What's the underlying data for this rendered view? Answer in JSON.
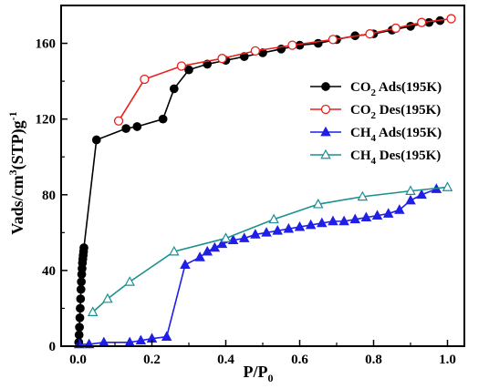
{
  "chart_data": {
    "type": "line",
    "title": "",
    "xlabel": "P/P",
    "xlabel_sub": "0",
    "ylabel_parts": {
      "a": "Vads/cm",
      "sup1": "3",
      "b": "(STP)g",
      "sup2": "-1"
    },
    "xlim": [
      -0.05,
      1.05
    ],
    "ylim": [
      0,
      180
    ],
    "x_ticks": [
      0.0,
      0.2,
      0.4,
      0.6,
      0.8,
      1.0
    ],
    "x_tick_labels": [
      "0.0",
      "0.2",
      "0.4",
      "0.6",
      "0.8",
      "1.0"
    ],
    "y_ticks": [
      0,
      40,
      80,
      120,
      160
    ],
    "y_tick_labels": [
      "0",
      "40",
      "80",
      "120",
      "160"
    ],
    "grid": false,
    "legend_position": "right",
    "series": [
      {
        "name_parts": [
          "CO",
          "2",
          " Ads(195K)"
        ],
        "color": "#000000",
        "marker": "circle-filled",
        "x": [
          0.002,
          0.003,
          0.004,
          0.005,
          0.006,
          0.007,
          0.008,
          0.009,
          0.01,
          0.011,
          0.012,
          0.013,
          0.014,
          0.015,
          0.016,
          0.05,
          0.13,
          0.16,
          0.23,
          0.26,
          0.3,
          0.35,
          0.4,
          0.45,
          0.5,
          0.55,
          0.6,
          0.65,
          0.7,
          0.75,
          0.8,
          0.85,
          0.9,
          0.95,
          0.98
        ],
        "y": [
          2,
          6,
          10,
          15,
          20,
          25,
          30,
          34,
          38,
          41,
          44,
          46,
          48,
          50,
          52,
          109,
          115,
          116,
          120,
          136,
          146,
          149,
          151,
          153,
          155,
          157,
          159,
          160,
          162,
          164,
          165,
          167,
          169,
          171,
          172
        ]
      },
      {
        "name_parts": [
          "CO",
          "2",
          " Des(195K)"
        ],
        "color": "#e8201c",
        "marker": "circle-open",
        "x": [
          0.11,
          0.18,
          0.28,
          0.39,
          0.48,
          0.58,
          0.69,
          0.79,
          0.86,
          0.93,
          1.01
        ],
        "y": [
          119,
          141,
          148,
          152,
          156,
          159,
          162,
          165,
          168,
          171,
          173
        ]
      },
      {
        "name_parts": [
          "CH",
          "4",
          " Ads(195K)"
        ],
        "color": "#1f1fe6",
        "marker": "triangle-filled",
        "x": [
          0.003,
          0.03,
          0.07,
          0.14,
          0.17,
          0.2,
          0.24,
          0.29,
          0.33,
          0.35,
          0.37,
          0.39,
          0.42,
          0.45,
          0.48,
          0.51,
          0.54,
          0.57,
          0.6,
          0.63,
          0.66,
          0.69,
          0.72,
          0.75,
          0.78,
          0.81,
          0.84,
          0.87,
          0.9,
          0.93,
          0.97
        ],
        "y": [
          1,
          1,
          2,
          2,
          3,
          4,
          5,
          43,
          47,
          50,
          52,
          54,
          56,
          57,
          59,
          60,
          61,
          62,
          63,
          64,
          65,
          66,
          66,
          67,
          68,
          69,
          70,
          72,
          77,
          80,
          83
        ]
      },
      {
        "name_parts": [
          "CH",
          "4",
          " Des(195K)"
        ],
        "color": "#1a9090",
        "marker": "triangle-open",
        "x": [
          0.04,
          0.08,
          0.14,
          0.26,
          0.4,
          0.53,
          0.65,
          0.77,
          0.9,
          1.0
        ],
        "y": [
          18,
          25,
          34,
          50,
          57,
          67,
          75,
          79,
          82,
          84
        ]
      }
    ]
  }
}
